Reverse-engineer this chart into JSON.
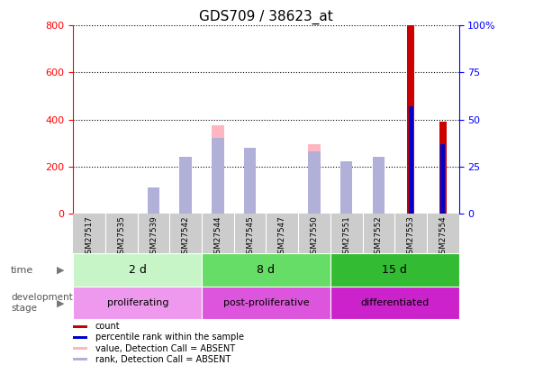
{
  "title": "GDS709 / 38623_at",
  "samples": [
    "GSM27517",
    "GSM27535",
    "GSM27539",
    "GSM27542",
    "GSM27544",
    "GSM27545",
    "GSM27547",
    "GSM27550",
    "GSM27551",
    "GSM27552",
    "GSM27553",
    "GSM27554"
  ],
  "count_values": [
    0,
    0,
    0,
    0,
    0,
    0,
    0,
    0,
    0,
    0,
    800,
    390
  ],
  "percentile_rank": [
    0,
    0,
    0,
    0,
    0,
    0,
    0,
    0,
    0,
    0,
    57,
    37
  ],
  "absent_value": [
    0,
    0,
    110,
    200,
    375,
    270,
    0,
    295,
    0,
    0,
    0,
    0
  ],
  "absent_rank": [
    0,
    0,
    14,
    30,
    40,
    35,
    0,
    33,
    28,
    30,
    0,
    0
  ],
  "time_groups": [
    {
      "label": "2 d",
      "start": 0,
      "end": 4
    },
    {
      "label": "8 d",
      "start": 4,
      "end": 8
    },
    {
      "label": "15 d",
      "start": 8,
      "end": 12
    }
  ],
  "stage_groups": [
    {
      "label": "proliferating",
      "start": 0,
      "end": 4
    },
    {
      "label": "post-proliferative",
      "start": 4,
      "end": 8
    },
    {
      "label": "differentiated",
      "start": 8,
      "end": 12
    }
  ],
  "time_colors": [
    "#c8f5c8",
    "#66dd66",
    "#33bb33"
  ],
  "stage_colors": [
    "#ee99ee",
    "#dd55dd",
    "#cc22cc"
  ],
  "ylim_left": [
    0,
    800
  ],
  "ylim_right": [
    0,
    100
  ],
  "yticks_left": [
    0,
    200,
    400,
    600,
    800
  ],
  "yticks_right": [
    0,
    25,
    50,
    75,
    100
  ],
  "count_color": "#cc0000",
  "percentile_color": "#0000cc",
  "absent_value_color": "#ffb6c1",
  "absent_rank_color": "#b0b0d8",
  "title_fontsize": 11,
  "tick_fontsize": 8,
  "legend_items": [
    {
      "color": "#cc0000",
      "label": "count"
    },
    {
      "color": "#0000cc",
      "label": "percentile rank within the sample"
    },
    {
      "color": "#ffb6c1",
      "label": "value, Detection Call = ABSENT"
    },
    {
      "color": "#b0b0d8",
      "label": "rank, Detection Call = ABSENT"
    }
  ]
}
